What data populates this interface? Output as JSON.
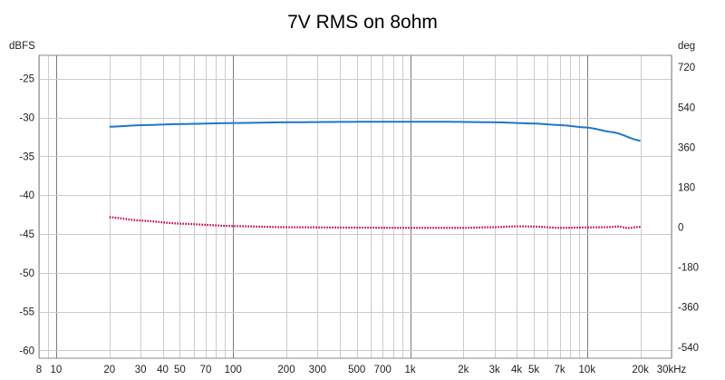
{
  "chart_data": {
    "type": "line",
    "title": "7V RMS on 8ohm",
    "x_scale": "log",
    "xlim": [
      8,
      30000
    ],
    "x_ticks": [
      {
        "v": 8,
        "label": "8"
      },
      {
        "v": 10,
        "label": "10"
      },
      {
        "v": 20,
        "label": "20"
      },
      {
        "v": 30,
        "label": "30"
      },
      {
        "v": 40,
        "label": "40"
      },
      {
        "v": 50,
        "label": "50"
      },
      {
        "v": 70,
        "label": "70"
      },
      {
        "v": 100,
        "label": "100"
      },
      {
        "v": 200,
        "label": "200"
      },
      {
        "v": 300,
        "label": "300"
      },
      {
        "v": 500,
        "label": "500"
      },
      {
        "v": 700,
        "label": "700"
      },
      {
        "v": 1000,
        "label": "1k"
      },
      {
        "v": 2000,
        "label": "2k"
      },
      {
        "v": 3000,
        "label": "3k"
      },
      {
        "v": 4000,
        "label": "4k"
      },
      {
        "v": 5000,
        "label": "5k"
      },
      {
        "v": 7000,
        "label": "7k"
      },
      {
        "v": 10000,
        "label": "10k"
      },
      {
        "v": 20000,
        "label": "20k"
      },
      {
        "v": 30000,
        "label": "30kHz"
      }
    ],
    "left_axis": {
      "label": "dBFS",
      "ylim": [
        -61,
        -22
      ],
      "ticks": [
        -25,
        -30,
        -35,
        -40,
        -45,
        -50,
        -55,
        -60
      ]
    },
    "right_axis": {
      "label": "deg",
      "ylim": [
        -590,
        774
      ],
      "ticks": [
        720,
        540,
        360,
        180,
        0,
        -180,
        -360,
        -540
      ]
    },
    "grid": true,
    "series": [
      {
        "axis": "left",
        "color": "#1f77c8",
        "style": "solid",
        "x": [
          20,
          30,
          50,
          100,
          200,
          500,
          1000,
          1500,
          3000,
          5000,
          7000,
          10000,
          14000,
          20000
        ],
        "y": [
          -31.2,
          -31.0,
          -30.85,
          -30.72,
          -30.62,
          -30.56,
          -30.55,
          -30.55,
          -30.62,
          -30.78,
          -30.98,
          -31.3,
          -31.9,
          -33.0
        ]
      },
      {
        "axis": "right",
        "color": "#cc0044",
        "style": "dotted",
        "x": [
          20,
          30,
          50,
          100,
          200,
          500,
          1000,
          2000,
          3000,
          4000,
          5000,
          7000,
          10000,
          13000,
          15000,
          17000,
          20000
        ],
        "y": [
          45,
          30,
          16,
          5,
          0,
          -2,
          -3,
          -3,
          0,
          4,
          3,
          -3,
          -1,
          0,
          3,
          -4,
          2
        ]
      }
    ]
  }
}
